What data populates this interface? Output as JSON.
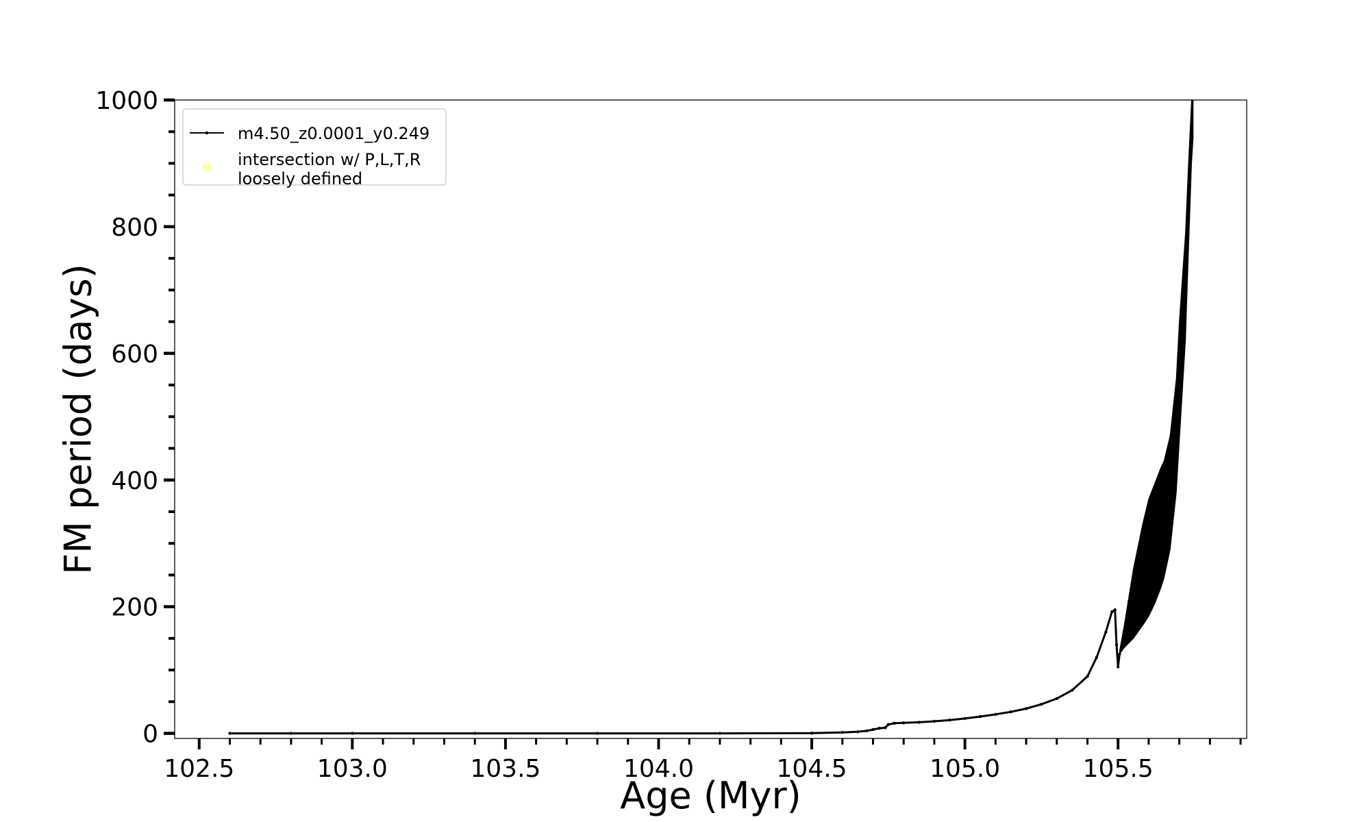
{
  "chart_data": {
    "type": "line",
    "title": "",
    "xlabel": "Age (Myr)",
    "ylabel": "FM period (days)",
    "xlim": [
      102.42,
      105.92
    ],
    "ylim": [
      -8,
      1000
    ],
    "x_ticks": [
      102.5,
      103.0,
      103.5,
      104.0,
      104.5,
      105.0,
      105.5
    ],
    "x_tick_labels": [
      "102.5",
      "103.0",
      "103.5",
      "104.0",
      "104.5",
      "105.0",
      "105.5"
    ],
    "y_ticks": [
      0,
      200,
      400,
      600,
      800,
      1000
    ],
    "y_tick_labels": [
      "0",
      "200",
      "400",
      "600",
      "800",
      "1000"
    ],
    "x_minor_step": 0.1,
    "y_minor_step": 50,
    "grid": false,
    "legend_position": "top-left",
    "legend": [
      {
        "label": "m4.50_z0.0001_y0.249",
        "color": "#000000",
        "marker": "line-dot"
      },
      {
        "label": "intersection w/ P,L,T,R\nloosely defined",
        "color": "#ffffb3",
        "marker": "circle"
      }
    ],
    "series": [
      {
        "name": "m4.50_z0.0001_y0.249",
        "color": "#000000",
        "points": [
          [
            102.6,
            0.0
          ],
          [
            102.8,
            0.0
          ],
          [
            103.0,
            0.0
          ],
          [
            103.4,
            0.0
          ],
          [
            103.8,
            0.0
          ],
          [
            104.2,
            0.0
          ],
          [
            104.5,
            0.3
          ],
          [
            104.6,
            1.5
          ],
          [
            104.65,
            2.5
          ],
          [
            104.68,
            4.0
          ],
          [
            104.7,
            6.0
          ],
          [
            104.72,
            8.0
          ],
          [
            104.74,
            9.0
          ],
          [
            104.75,
            14.0
          ],
          [
            104.77,
            16.0
          ],
          [
            104.8,
            16.5
          ],
          [
            104.85,
            17.5
          ],
          [
            104.9,
            19.0
          ],
          [
            104.95,
            21.0
          ],
          [
            105.0,
            23.5
          ],
          [
            105.05,
            26.5
          ],
          [
            105.1,
            30.0
          ],
          [
            105.15,
            34.0
          ],
          [
            105.2,
            39.0
          ],
          [
            105.25,
            46.0
          ],
          [
            105.3,
            55.0
          ],
          [
            105.35,
            68.0
          ],
          [
            105.4,
            90.0
          ],
          [
            105.43,
            120.0
          ],
          [
            105.46,
            160.0
          ],
          [
            105.48,
            192.0
          ],
          [
            105.49,
            195.0
          ],
          [
            105.495,
            140.0
          ],
          [
            105.5,
            105.0
          ],
          [
            105.505,
            125.0
          ]
        ]
      }
    ],
    "oscillation_band": {
      "x": [
        105.505,
        105.52,
        105.55,
        105.58,
        105.6,
        105.62,
        105.64,
        105.65,
        105.67,
        105.69,
        105.7,
        105.72,
        105.73,
        105.74,
        105.745
      ],
      "lower": [
        125,
        135,
        150,
        170,
        185,
        205,
        230,
        245,
        290,
        380,
        460,
        620,
        760,
        900,
        940
      ],
      "upper": [
        130,
        170,
        260,
        330,
        370,
        395,
        420,
        430,
        470,
        560,
        650,
        790,
        900,
        1000,
        1000
      ]
    }
  }
}
